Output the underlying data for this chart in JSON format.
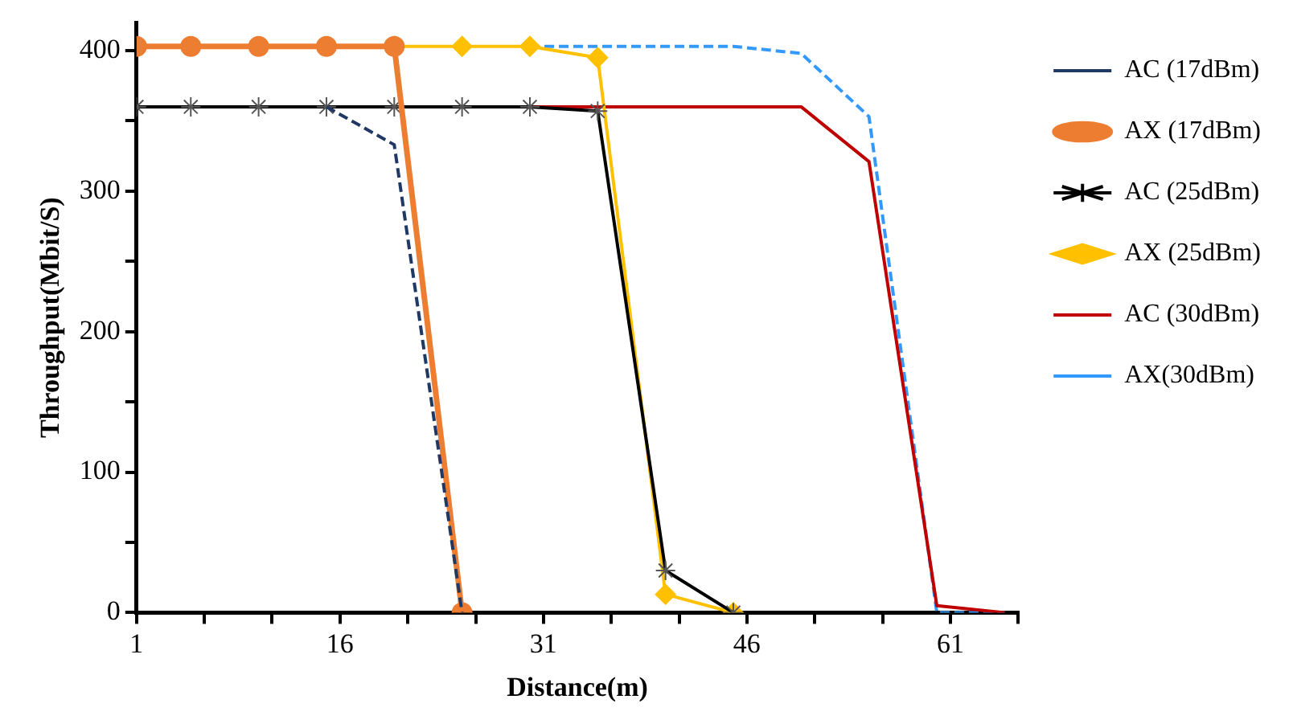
{
  "chart_data": {
    "type": "line",
    "xlabel": "Distance(m)",
    "ylabel": "Throughput(Mbit/S)",
    "xlim": [
      1,
      66
    ],
    "xticks": [
      1,
      {
        "value": 6,
        "label": null
      },
      {
        "value": 11,
        "label": null
      },
      16,
      {
        "value": 21,
        "label": null
      },
      {
        "value": 26,
        "label": null
      },
      31,
      {
        "value": 36,
        "label": null
      },
      {
        "value": 41,
        "label": null
      },
      46,
      {
        "value": 51,
        "label": null
      },
      {
        "value": 56,
        "label": null
      },
      61,
      {
        "value": 66,
        "label": null
      }
    ],
    "ylim": [
      0,
      420
    ],
    "yticks": [
      0,
      {
        "value": 50,
        "label": null
      },
      100,
      {
        "value": 150,
        "label": null
      },
      200,
      {
        "value": 250,
        "label": null
      },
      300,
      {
        "value": 350,
        "label": null
      },
      400
    ],
    "grid": false,
    "legend": "right",
    "series": [
      {
        "name": "AC (17dBm)",
        "color": "#1f3864",
        "marker": "none",
        "line_style": "dashed",
        "x": [
          15,
          20,
          25
        ],
        "values": [
          360,
          333,
          0
        ]
      },
      {
        "name": "AX (17dBm)",
        "color": "#ed7d31",
        "marker": "circle",
        "line_style": "solid",
        "x": [
          1,
          5,
          10,
          15,
          20,
          25
        ],
        "values": [
          403,
          403,
          403,
          403,
          403,
          0
        ]
      },
      {
        "name": "AC (25dBm)",
        "color": "#000000",
        "marker": "cross",
        "line_style": "solid",
        "x": [
          1,
          5,
          10,
          15,
          20,
          25,
          30,
          35,
          40,
          45
        ],
        "values": [
          360,
          360,
          360,
          360,
          360,
          360,
          360,
          357,
          30,
          0
        ]
      },
      {
        "name": "AX (25dBm)",
        "color": "#ffc000",
        "marker": "diamond",
        "line_style": "solid",
        "x": [
          20,
          25,
          30,
          35,
          40,
          45
        ],
        "values": [
          403,
          403,
          403,
          395,
          13,
          0
        ]
      },
      {
        "name": "AC (30dBm)",
        "color": "#c00000",
        "marker": "none",
        "line_style": "solid",
        "x": [
          25,
          30,
          35,
          40,
          45,
          50,
          55,
          60,
          65
        ],
        "values": [
          360,
          360,
          360,
          360,
          360,
          360,
          321,
          5,
          0
        ]
      },
      {
        "name": "AX(30dBm)",
        "color": "#3399ff",
        "marker": "none",
        "line_style": "dashed",
        "x": [
          30,
          35,
          40,
          45,
          50,
          55,
          60,
          65
        ],
        "values": [
          403,
          403,
          403,
          403,
          398,
          353,
          0,
          0
        ]
      }
    ]
  }
}
